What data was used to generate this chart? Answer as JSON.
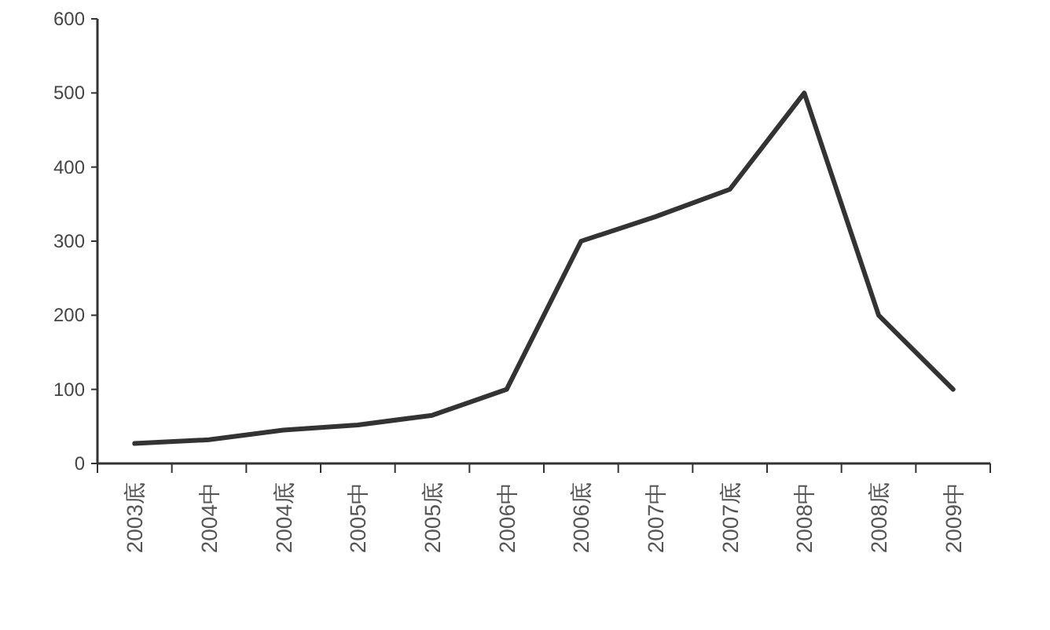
{
  "chart_data": {
    "type": "line",
    "categories": [
      "2003底",
      "2004中",
      "2004底",
      "2005中",
      "2005底",
      "2006中",
      "2006底",
      "2007中",
      "2007底",
      "2008中",
      "2008底",
      "2009中"
    ],
    "series": [
      {
        "color": "#333333",
        "values": [
          27,
          32,
          45,
          52,
          65,
          100,
          300,
          333,
          370,
          500,
          200,
          100
        ]
      }
    ],
    "ylim": [
      0,
      600
    ],
    "yticks": [
      0,
      100,
      200,
      300,
      400,
      500,
      600
    ],
    "grid": false,
    "marker": "none",
    "line_style": "solid"
  }
}
